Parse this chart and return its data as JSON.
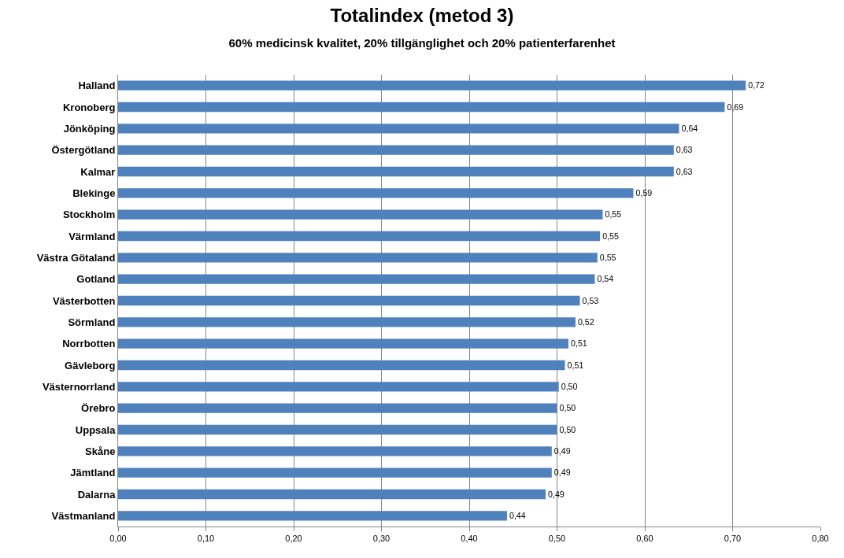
{
  "chart_data": {
    "type": "bar",
    "orientation": "horizontal",
    "title": "Totalindex (metod 3)",
    "subtitle": "60% medicinsk kvalitet, 20% tillgänglighet och 20% patienterfarenhet",
    "categories": [
      "Halland",
      "Kronoberg",
      "Jönköping",
      "Östergötland",
      "Kalmar",
      "Blekinge",
      "Stockholm",
      "Värmland",
      "Västra Götaland",
      "Gotland",
      "Västerbotten",
      "Sörmland",
      "Norrbotten",
      "Gävleborg",
      "Västernorrland",
      "Örebro",
      "Uppsala",
      "Skåne",
      "Jämtland",
      "Dalarna",
      "Västmanland"
    ],
    "values": [
      0.715,
      0.691,
      0.639,
      0.633,
      0.633,
      0.587,
      0.552,
      0.549,
      0.546,
      0.543,
      0.526,
      0.521,
      0.513,
      0.509,
      0.502,
      0.5,
      0.5,
      0.494,
      0.494,
      0.487,
      0.443
    ],
    "value_labels": [
      "0,72",
      "0,69",
      "0,64",
      "0,63",
      "0,63",
      "0,59",
      "0,55",
      "0,55",
      "0,55",
      "0,54",
      "0,53",
      "0,52",
      "0,51",
      "0,51",
      "0,50",
      "0,50",
      "0,50",
      "0,49",
      "0,49",
      "0,49",
      "0,44"
    ],
    "color": "#4f81bd",
    "xlim": [
      0,
      0.8
    ],
    "xticks": [
      {
        "value": 0,
        "label": "0,00"
      },
      {
        "value": 0.1,
        "label": "0,10"
      },
      {
        "value": 0.2,
        "label": "0,20"
      },
      {
        "value": 0.3,
        "label": "0,30"
      },
      {
        "value": 0.4,
        "label": "0,40"
      },
      {
        "value": 0.5,
        "label": "0,50"
      },
      {
        "value": 0.6,
        "label": "0,60"
      },
      {
        "value": 0.7,
        "label": "0,70"
      },
      {
        "value": 0.8,
        "label": "0,80"
      }
    ],
    "grid": "x"
  }
}
